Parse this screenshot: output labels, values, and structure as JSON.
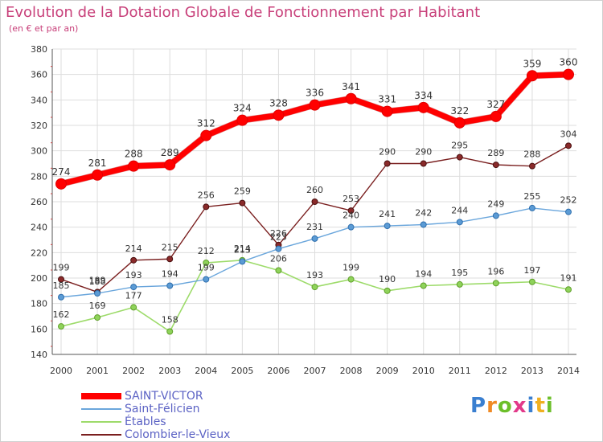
{
  "title": "Evolution de la Dotation Globale de Fonctionnement par Habitant",
  "subtitle": "(en € et par an)",
  "brand": {
    "text": "Proxiti",
    "colors": [
      "#3a7fd0",
      "#f08a24",
      "#6cbf2a",
      "#e23a8a",
      "#3a7fd0",
      "#f0b020",
      "#6cbf2a"
    ]
  },
  "chart_data": {
    "type": "line",
    "title": "Evolution de la Dotation Globale de Fonctionnement par Habitant",
    "subtitle": "(en € et par an)",
    "x": [
      "2000",
      "2001",
      "2002",
      "2003",
      "2004",
      "2005",
      "2006",
      "2007",
      "2008",
      "2009",
      "2010",
      "2011",
      "2012",
      "2013",
      "2014"
    ],
    "ylim": [
      140,
      380
    ],
    "yticks": [
      140,
      160,
      180,
      200,
      220,
      240,
      260,
      280,
      300,
      320,
      340,
      360,
      380
    ],
    "grid": true,
    "legend_position": "bottom-left",
    "series": [
      {
        "name": "SAINT-VICTOR",
        "color": "#ff0000",
        "values": [
          274,
          281,
          288,
          289,
          312,
          324,
          328,
          336,
          341,
          331,
          334,
          322,
          327,
          359,
          360
        ]
      },
      {
        "name": "Saint-Félicien",
        "color": "#5b9bd5",
        "values": [
          185,
          188,
          193,
          194,
          199,
          213,
          223,
          231,
          240,
          241,
          242,
          244,
          249,
          255,
          252
        ]
      },
      {
        "name": "Étables",
        "color": "#8fd35a",
        "values": [
          162,
          169,
          177,
          158,
          212,
          214,
          206,
          193,
          199,
          190,
          194,
          195,
          196,
          197,
          191
        ]
      },
      {
        "name": "Colombier-le-Vieux",
        "color": "#7a1f1f",
        "values": [
          199,
          189,
          214,
          215,
          256,
          259,
          226,
          260,
          253,
          290,
          290,
          295,
          289,
          288,
          304
        ]
      }
    ]
  }
}
